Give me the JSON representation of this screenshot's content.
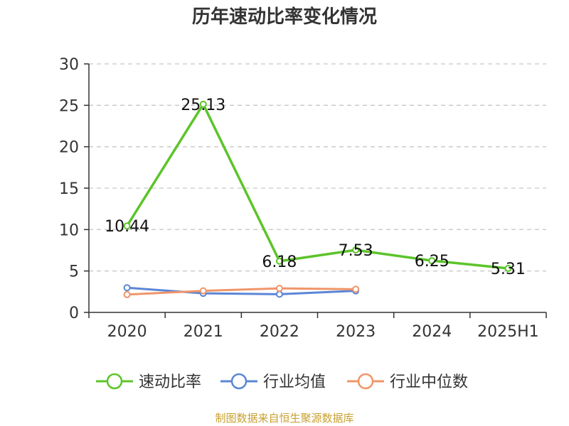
{
  "chart_data": {
    "type": "line",
    "title": "历年速动比率变化情况",
    "categories": [
      "2020",
      "2021",
      "2022",
      "2023",
      "2024",
      "2025H1"
    ],
    "ylim": [
      0,
      30
    ],
    "yticks": [
      "0",
      "5",
      "10",
      "15",
      "20",
      "25",
      "30"
    ],
    "grid": true,
    "legend_position": "bottom",
    "series": [
      {
        "name": "速动比率",
        "color": "#5cc42a",
        "values": [
          10.44,
          25.13,
          6.18,
          7.53,
          6.25,
          5.31
        ],
        "labels": [
          "10.44",
          "25.13",
          "6.18",
          "7.53",
          "6.25",
          "5.31"
        ]
      },
      {
        "name": "行业均值",
        "color": "#5b86d6",
        "values": [
          2.98,
          2.3,
          2.2,
          2.6,
          null,
          null
        ]
      },
      {
        "name": "行业中位数",
        "color": "#f0956a",
        "values": [
          2.15,
          2.6,
          2.9,
          2.8,
          null,
          null
        ]
      }
    ],
    "source": "制图数据来自恒生聚源数据库"
  }
}
